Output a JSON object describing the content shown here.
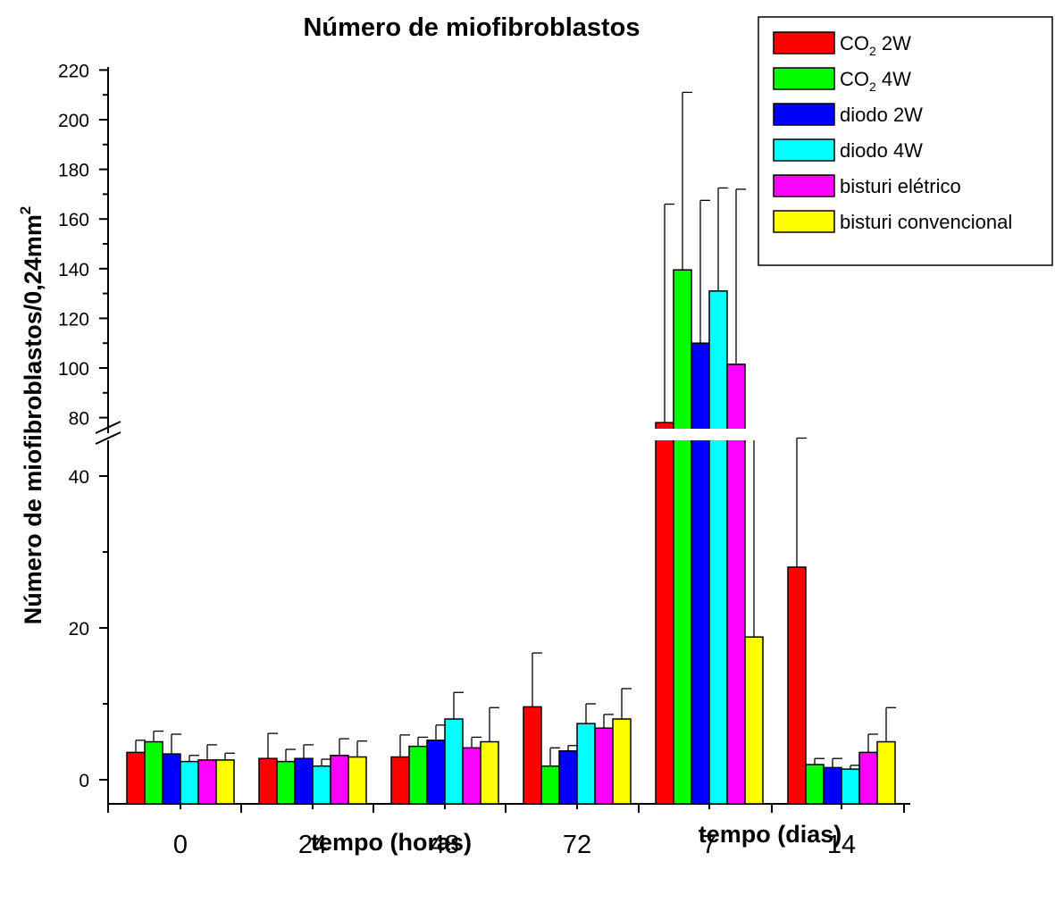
{
  "chart_data": {
    "type": "bar",
    "title": "Número de miofibroblastos",
    "ylabel": "Número de miofibroblastos/0,24mm",
    "ylabel_superscript": "2",
    "xlabels": [
      {
        "text": "tempo (horas)",
        "groups": [
          "0",
          "24",
          "48",
          "72"
        ]
      },
      {
        "text": "tempo (dias)",
        "groups": [
          "7",
          "14"
        ]
      }
    ],
    "categories": [
      "0",
      "24",
      "48",
      "72",
      "7",
      "14"
    ],
    "y_axis": {
      "lower_segment": {
        "range": [
          0,
          45
        ],
        "ticks": [
          "0",
          "20",
          "40"
        ]
      },
      "upper_segment": {
        "range": [
          70,
          220
        ],
        "ticks": [
          "80",
          "100",
          "120",
          "140",
          "160",
          "180",
          "200",
          "220"
        ]
      },
      "break": [
        45,
        70
      ]
    },
    "legend_position": "top-right",
    "series": [
      {
        "name": "CO",
        "name_sub": "2",
        "name_suffix": " 2W",
        "color": "#ff0000",
        "values": [
          3.6,
          2.8,
          3.0,
          9.6,
          78,
          28
        ],
        "errors": [
          1.6,
          3.3,
          2.9,
          7.1,
          88,
          26
        ]
      },
      {
        "name": "CO",
        "name_sub": "2",
        "name_suffix": " 4W",
        "color": "#00ff00",
        "values": [
          5.0,
          2.4,
          4.4,
          1.8,
          139.5,
          2.0
        ],
        "errors": [
          1.4,
          1.6,
          1.2,
          2.4,
          71.5,
          0.8
        ]
      },
      {
        "name": "diodo 2W",
        "color": "#0000ff",
        "values": [
          3.4,
          2.8,
          5.2,
          3.8,
          110,
          1.6
        ],
        "errors": [
          2.6,
          1.8,
          2.0,
          0.7,
          57.5,
          1.2
        ]
      },
      {
        "name": "diodo 4W",
        "color": "#00ffff",
        "values": [
          2.4,
          1.8,
          8.0,
          7.4,
          131,
          1.4
        ],
        "errors": [
          0.8,
          0.9,
          3.5,
          2.6,
          41.5,
          0.5
        ]
      },
      {
        "name": "bisturi elétrico",
        "color": "#ff00ff",
        "values": [
          2.6,
          3.2,
          4.2,
          6.8,
          101.5,
          3.6
        ],
        "errors": [
          2.0,
          2.2,
          1.4,
          1.8,
          70.5,
          2.4
        ]
      },
      {
        "name": "bisturi convencional",
        "color": "#ffff00",
        "values": [
          2.6,
          3.0,
          5.0,
          8.0,
          18.8,
          5.0
        ],
        "errors": [
          0.9,
          2.1,
          4.5,
          4.0,
          26.2,
          4.5
        ]
      }
    ]
  }
}
